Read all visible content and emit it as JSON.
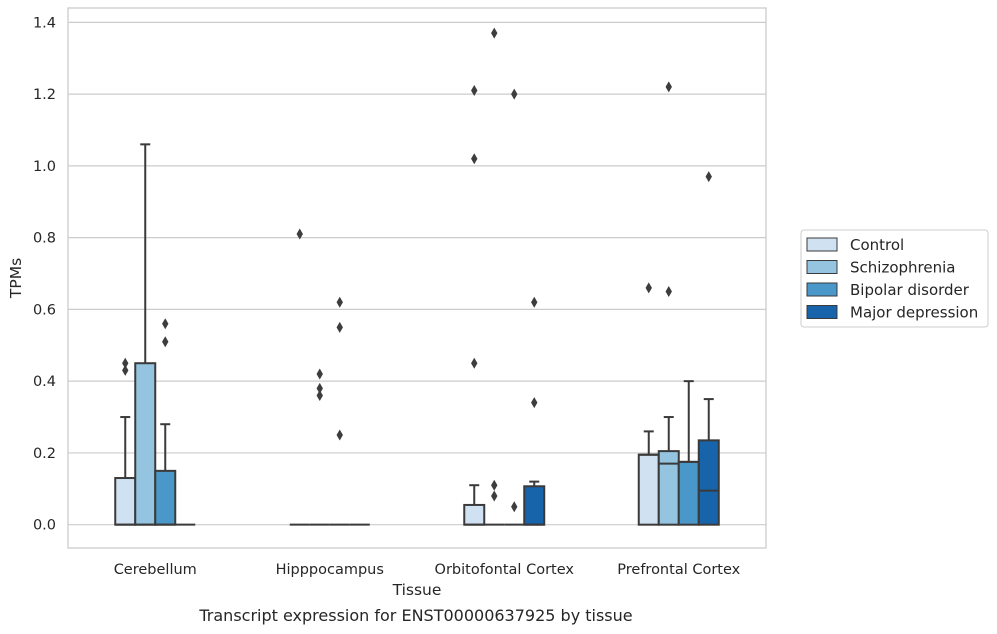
{
  "caption": "Transcript expression for ENST00000637925 by tissue",
  "chart_data": {
    "type": "box",
    "xlabel": "Tissue",
    "ylabel": "TPMs",
    "ylim": [
      -0.065,
      1.44
    ],
    "yticks": [
      0.0,
      0.2,
      0.4,
      0.6,
      0.8,
      1.0,
      1.2,
      1.4
    ],
    "ytick_labels": [
      "0.0",
      "0.2",
      "0.4",
      "0.6",
      "0.8",
      "1.0",
      "1.2",
      "1.4"
    ],
    "grid": "horizontal",
    "legend_position": "right",
    "categories": [
      "Cerebellum",
      "Hipppocampus",
      "Orbitofontal Cortex",
      "Prefrontal Cortex"
    ],
    "series": [
      {
        "name": "Control",
        "color": "#d0e1f2",
        "boxes": [
          {
            "q1": 0.0,
            "median": 0.0,
            "q3": 0.13,
            "whisker_low": 0.0,
            "whisker_high": 0.3,
            "outliers": [
              0.43,
              0.45
            ]
          },
          {
            "q1": 0.0,
            "median": 0.0,
            "q3": 0.0,
            "whisker_low": 0.0,
            "whisker_high": 0.0,
            "outliers": [
              0.81
            ]
          },
          {
            "q1": 0.0,
            "median": 0.0,
            "q3": 0.055,
            "whisker_low": 0.0,
            "whisker_high": 0.11,
            "outliers": [
              0.45,
              1.02,
              1.21
            ]
          },
          {
            "q1": 0.0,
            "median": 0.195,
            "q3": 0.195,
            "whisker_low": 0.0,
            "whisker_high": 0.26,
            "outliers": [
              0.66
            ]
          }
        ]
      },
      {
        "name": "Schizophrenia",
        "color": "#94c4df",
        "boxes": [
          {
            "q1": 0.0,
            "median": 0.0,
            "q3": 0.45,
            "whisker_low": 0.0,
            "whisker_high": 1.06,
            "outliers": []
          },
          {
            "q1": 0.0,
            "median": 0.0,
            "q3": 0.0,
            "whisker_low": 0.0,
            "whisker_high": 0.0,
            "outliers": [
              0.36,
              0.38,
              0.42
            ]
          },
          {
            "q1": 0.0,
            "median": 0.0,
            "q3": 0.0,
            "whisker_low": 0.0,
            "whisker_high": 0.0,
            "outliers": [
              0.08,
              0.11,
              1.37
            ]
          },
          {
            "q1": 0.0,
            "median": 0.17,
            "q3": 0.205,
            "whisker_low": 0.0,
            "whisker_high": 0.3,
            "outliers": [
              0.65,
              1.22
            ]
          }
        ]
      },
      {
        "name": "Bipolar disorder",
        "color": "#4a98c9",
        "boxes": [
          {
            "q1": 0.0,
            "median": 0.0,
            "q3": 0.15,
            "whisker_low": 0.0,
            "whisker_high": 0.28,
            "outliers": [
              0.51,
              0.56
            ]
          },
          {
            "q1": 0.0,
            "median": 0.0,
            "q3": 0.0,
            "whisker_low": 0.0,
            "whisker_high": 0.0,
            "outliers": [
              0.25,
              0.55,
              0.62
            ]
          },
          {
            "q1": 0.0,
            "median": 0.0,
            "q3": 0.0,
            "whisker_low": 0.0,
            "whisker_high": 0.0,
            "outliers": [
              0.05,
              1.2
            ]
          },
          {
            "q1": 0.0,
            "median": 0.175,
            "q3": 0.175,
            "whisker_low": 0.0,
            "whisker_high": 0.4,
            "outliers": []
          }
        ]
      },
      {
        "name": "Major depression",
        "color": "#1764ab",
        "boxes": [
          {
            "q1": 0.0,
            "median": 0.0,
            "q3": 0.0,
            "whisker_low": 0.0,
            "whisker_high": 0.0,
            "outliers": []
          },
          {
            "q1": 0.0,
            "median": 0.0,
            "q3": 0.0,
            "whisker_low": 0.0,
            "whisker_high": 0.0,
            "outliers": []
          },
          {
            "q1": 0.0,
            "median": 0.0,
            "q3": 0.107,
            "whisker_low": 0.0,
            "whisker_high": 0.12,
            "outliers": [
              0.34,
              0.62
            ]
          },
          {
            "q1": 0.0,
            "median": 0.095,
            "q3": 0.235,
            "whisker_low": 0.0,
            "whisker_high": 0.35,
            "outliers": [
              0.97
            ]
          }
        ]
      }
    ]
  }
}
